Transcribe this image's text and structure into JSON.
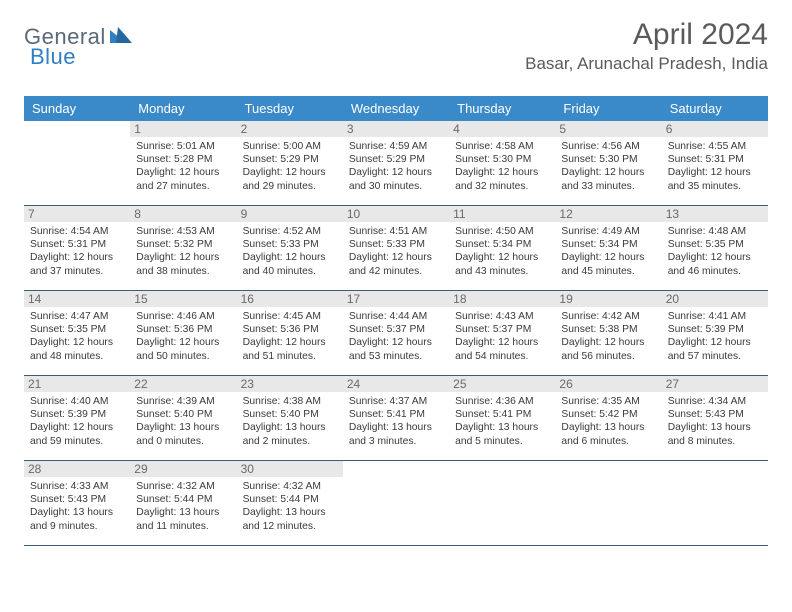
{
  "logo": {
    "general": "General",
    "blue": "Blue"
  },
  "title": "April 2024",
  "location": "Basar, Arunachal Pradesh, India",
  "colors": {
    "header_bg": "#3a8ac9",
    "header_text": "#ffffff",
    "daynum_bg": "#e8e8e8",
    "daynum_text": "#6a6a6a",
    "border": "#3f5b75",
    "logo_blue": "#2f7fc2",
    "logo_gray": "#5a6a78",
    "title_color": "#5a5a5a"
  },
  "dayNames": [
    "Sunday",
    "Monday",
    "Tuesday",
    "Wednesday",
    "Thursday",
    "Friday",
    "Saturday"
  ],
  "weeks": [
    [
      null,
      {
        "n": "1",
        "sunrise": "5:01 AM",
        "sunset": "5:28 PM",
        "dh": "12",
        "dm": "27"
      },
      {
        "n": "2",
        "sunrise": "5:00 AM",
        "sunset": "5:29 PM",
        "dh": "12",
        "dm": "29"
      },
      {
        "n": "3",
        "sunrise": "4:59 AM",
        "sunset": "5:29 PM",
        "dh": "12",
        "dm": "30"
      },
      {
        "n": "4",
        "sunrise": "4:58 AM",
        "sunset": "5:30 PM",
        "dh": "12",
        "dm": "32"
      },
      {
        "n": "5",
        "sunrise": "4:56 AM",
        "sunset": "5:30 PM",
        "dh": "12",
        "dm": "33"
      },
      {
        "n": "6",
        "sunrise": "4:55 AM",
        "sunset": "5:31 PM",
        "dh": "12",
        "dm": "35"
      }
    ],
    [
      {
        "n": "7",
        "sunrise": "4:54 AM",
        "sunset": "5:31 PM",
        "dh": "12",
        "dm": "37"
      },
      {
        "n": "8",
        "sunrise": "4:53 AM",
        "sunset": "5:32 PM",
        "dh": "12",
        "dm": "38"
      },
      {
        "n": "9",
        "sunrise": "4:52 AM",
        "sunset": "5:33 PM",
        "dh": "12",
        "dm": "40"
      },
      {
        "n": "10",
        "sunrise": "4:51 AM",
        "sunset": "5:33 PM",
        "dh": "12",
        "dm": "42"
      },
      {
        "n": "11",
        "sunrise": "4:50 AM",
        "sunset": "5:34 PM",
        "dh": "12",
        "dm": "43"
      },
      {
        "n": "12",
        "sunrise": "4:49 AM",
        "sunset": "5:34 PM",
        "dh": "12",
        "dm": "45"
      },
      {
        "n": "13",
        "sunrise": "4:48 AM",
        "sunset": "5:35 PM",
        "dh": "12",
        "dm": "46"
      }
    ],
    [
      {
        "n": "14",
        "sunrise": "4:47 AM",
        "sunset": "5:35 PM",
        "dh": "12",
        "dm": "48"
      },
      {
        "n": "15",
        "sunrise": "4:46 AM",
        "sunset": "5:36 PM",
        "dh": "12",
        "dm": "50"
      },
      {
        "n": "16",
        "sunrise": "4:45 AM",
        "sunset": "5:36 PM",
        "dh": "12",
        "dm": "51"
      },
      {
        "n": "17",
        "sunrise": "4:44 AM",
        "sunset": "5:37 PM",
        "dh": "12",
        "dm": "53"
      },
      {
        "n": "18",
        "sunrise": "4:43 AM",
        "sunset": "5:37 PM",
        "dh": "12",
        "dm": "54"
      },
      {
        "n": "19",
        "sunrise": "4:42 AM",
        "sunset": "5:38 PM",
        "dh": "12",
        "dm": "56"
      },
      {
        "n": "20",
        "sunrise": "4:41 AM",
        "sunset": "5:39 PM",
        "dh": "12",
        "dm": "57"
      }
    ],
    [
      {
        "n": "21",
        "sunrise": "4:40 AM",
        "sunset": "5:39 PM",
        "dh": "12",
        "dm": "59"
      },
      {
        "n": "22",
        "sunrise": "4:39 AM",
        "sunset": "5:40 PM",
        "dh": "13",
        "dm": "0"
      },
      {
        "n": "23",
        "sunrise": "4:38 AM",
        "sunset": "5:40 PM",
        "dh": "13",
        "dm": "2"
      },
      {
        "n": "24",
        "sunrise": "4:37 AM",
        "sunset": "5:41 PM",
        "dh": "13",
        "dm": "3"
      },
      {
        "n": "25",
        "sunrise": "4:36 AM",
        "sunset": "5:41 PM",
        "dh": "13",
        "dm": "5"
      },
      {
        "n": "26",
        "sunrise": "4:35 AM",
        "sunset": "5:42 PM",
        "dh": "13",
        "dm": "6"
      },
      {
        "n": "27",
        "sunrise": "4:34 AM",
        "sunset": "5:43 PM",
        "dh": "13",
        "dm": "8"
      }
    ],
    [
      {
        "n": "28",
        "sunrise": "4:33 AM",
        "sunset": "5:43 PM",
        "dh": "13",
        "dm": "9"
      },
      {
        "n": "29",
        "sunrise": "4:32 AM",
        "sunset": "5:44 PM",
        "dh": "13",
        "dm": "11"
      },
      {
        "n": "30",
        "sunrise": "4:32 AM",
        "sunset": "5:44 PM",
        "dh": "13",
        "dm": "12"
      },
      null,
      null,
      null,
      null
    ]
  ]
}
